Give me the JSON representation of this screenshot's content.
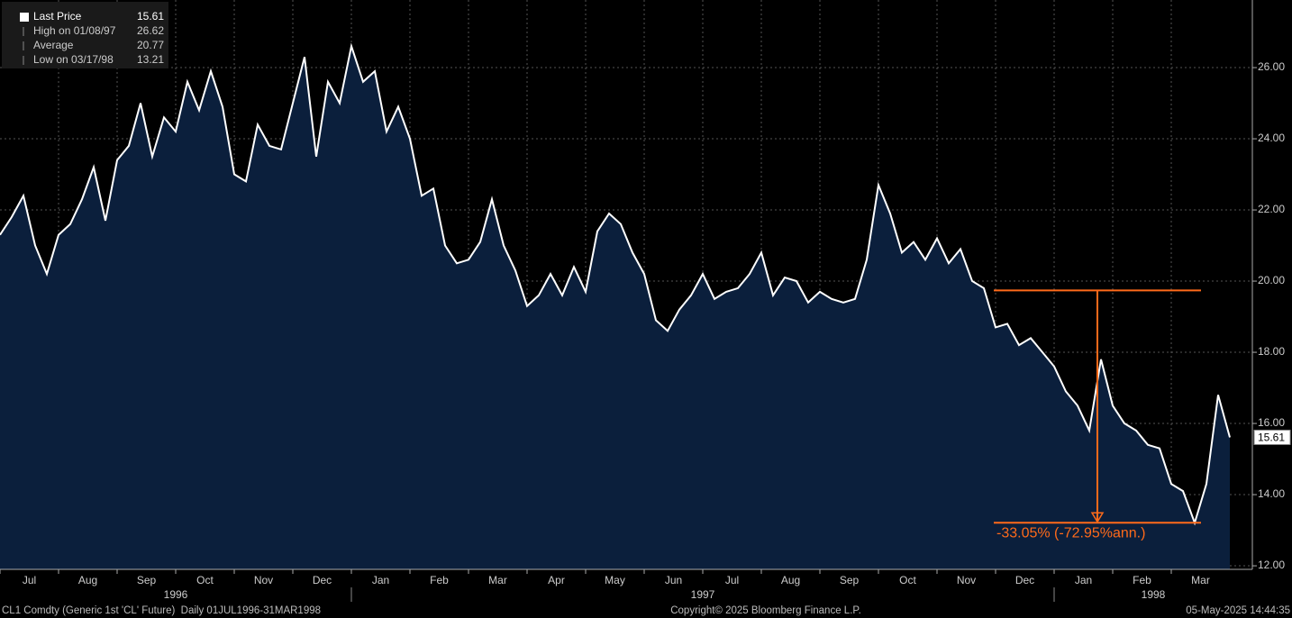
{
  "chart_data": {
    "type": "area",
    "legend": [
      {
        "label": "Last Price",
        "value": "15.61"
      },
      {
        "label": "High on 01/08/97",
        "value": "26.62"
      },
      {
        "label": "Average",
        "value": "20.77"
      },
      {
        "label": "Low on 03/17/98",
        "value": "13.21"
      }
    ],
    "months": [
      "Jul",
      "Aug",
      "Sep",
      "Oct",
      "Nov",
      "Dec",
      "Jan",
      "Feb",
      "Mar",
      "Apr",
      "May",
      "Jun",
      "Jul",
      "Aug",
      "Sep",
      "Oct",
      "Nov",
      "Dec",
      "Jan",
      "Feb",
      "Mar"
    ],
    "years": [
      {
        "label": "1996",
        "months": 6
      },
      {
        "label": "1997",
        "months": 12
      },
      {
        "label": "1998",
        "months": 3
      }
    ],
    "values": [
      21.3,
      21.8,
      22.4,
      21.0,
      20.2,
      21.3,
      21.6,
      22.3,
      23.2,
      21.7,
      23.4,
      23.8,
      25.0,
      23.5,
      24.6,
      24.2,
      25.6,
      24.8,
      25.9,
      24.9,
      23.0,
      22.8,
      24.4,
      23.8,
      23.7,
      25.0,
      26.3,
      23.5,
      25.6,
      25.0,
      26.6,
      25.6,
      25.9,
      24.2,
      24.9,
      24.0,
      22.4,
      22.6,
      21.0,
      20.5,
      20.6,
      21.1,
      22.3,
      21.0,
      20.3,
      19.3,
      19.6,
      20.2,
      19.6,
      20.4,
      19.7,
      21.4,
      21.9,
      21.6,
      20.8,
      20.2,
      18.9,
      18.6,
      19.2,
      19.6,
      20.2,
      19.5,
      19.7,
      19.8,
      20.2,
      20.8,
      19.6,
      20.1,
      20.0,
      19.4,
      19.7,
      19.5,
      19.4,
      19.5,
      20.6,
      22.7,
      21.9,
      20.8,
      21.1,
      20.6,
      21.2,
      20.5,
      20.9,
      20.0,
      19.8,
      18.7,
      18.8,
      18.2,
      18.4,
      18.0,
      17.6,
      16.9,
      16.5,
      15.8,
      17.8,
      16.5,
      16.0,
      15.8,
      15.4,
      15.3,
      14.3,
      14.1,
      13.21,
      14.3,
      16.8,
      15.61
    ],
    "ylim": [
      11.9,
      27.9
    ],
    "yticks": [
      {
        "value": 12,
        "label": "12.00"
      },
      {
        "value": 14,
        "label": "14.00"
      },
      {
        "value": 16,
        "label": "16.00"
      },
      {
        "value": 18,
        "label": "18.00"
      },
      {
        "value": 20,
        "label": "20.00"
      },
      {
        "value": 22,
        "label": "22.00"
      },
      {
        "value": 24,
        "label": "24.00"
      },
      {
        "value": 26,
        "label": "26.00"
      }
    ],
    "grid": true,
    "line_color": "#ffffff",
    "fill_color": "#0b1f3c",
    "annotation_color": "#ff6a1a",
    "annotation": {
      "from": 19.74,
      "to": 13.21,
      "label": "-33.05% (-72.95%ann.)"
    },
    "footer": {
      "left": "CL1 Comdty (Generic 1st 'CL' Future)  Daily 01JUL1996-31MAR1998",
      "center": "Copyright© 2025 Bloomberg Finance L.P.",
      "right": "05-May-2025 14:44:35"
    }
  }
}
